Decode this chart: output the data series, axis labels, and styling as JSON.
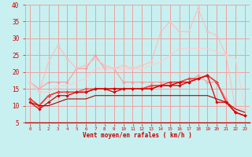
{
  "xlabel": "Vent moyen/en rafales ( km/h )",
  "bg_color": "#c8f0f0",
  "grid_color": "#f0a0a0",
  "xlim": [
    -0.5,
    23.5
  ],
  "ylim": [
    5,
    40
  ],
  "yticks": [
    5,
    10,
    15,
    20,
    25,
    30,
    35,
    40
  ],
  "xticks": [
    0,
    1,
    2,
    3,
    4,
    5,
    6,
    7,
    8,
    9,
    10,
    11,
    12,
    13,
    14,
    15,
    16,
    17,
    18,
    19,
    20,
    21,
    22,
    23
  ],
  "lines": [
    {
      "x": [
        0,
        1,
        2,
        3,
        4,
        5,
        6,
        7,
        8,
        9,
        10,
        11,
        12,
        13,
        14,
        15,
        16,
        17,
        18,
        19,
        20,
        21,
        22,
        23
      ],
      "y": [
        17,
        15,
        17,
        17,
        17,
        21,
        21,
        25,
        21,
        21,
        17,
        17,
        17,
        17,
        17,
        17,
        17,
        17,
        19,
        17,
        17,
        12,
        8,
        7
      ],
      "color": "#ff9999",
      "lw": 0.8,
      "marker": "D",
      "ms": 1.8
    },
    {
      "x": [
        0,
        1,
        2,
        3,
        4,
        5,
        6,
        7,
        8,
        9,
        10,
        11,
        12,
        13,
        14,
        15,
        16,
        17,
        18,
        19,
        20,
        21,
        22,
        23
      ],
      "y": [
        17,
        14,
        23,
        28,
        24,
        21,
        22,
        24,
        22,
        21,
        22,
        21,
        22,
        23,
        32,
        35,
        32,
        32,
        39,
        32,
        31,
        25,
        9,
        9
      ],
      "color": "#ffbbbb",
      "lw": 0.8,
      "marker": "D",
      "ms": 1.8
    },
    {
      "x": [
        0,
        1,
        2,
        3,
        4,
        5,
        6,
        7,
        8,
        9,
        10,
        11,
        12,
        13,
        14,
        15,
        16,
        17,
        18,
        19,
        20,
        21,
        22,
        23
      ],
      "y": [
        17,
        14,
        14,
        16,
        16,
        17,
        18,
        21,
        21,
        21,
        21,
        21,
        21,
        22,
        23,
        25,
        27,
        27,
        27,
        27,
        26,
        25,
        24,
        9
      ],
      "color": "#ffcccc",
      "lw": 0.8,
      "marker": null,
      "ms": 0
    },
    {
      "x": [
        0,
        1,
        2,
        3,
        4,
        5,
        6,
        7,
        8,
        9,
        10,
        11,
        12,
        13,
        14,
        15,
        16,
        17,
        18,
        19,
        20,
        21,
        22,
        23
      ],
      "y": [
        12,
        10,
        13,
        14,
        14,
        14,
        14,
        15,
        15,
        14,
        15,
        15,
        15,
        15,
        16,
        16,
        16,
        17,
        18,
        19,
        17,
        11,
        8,
        7
      ],
      "color": "#cc0000",
      "lw": 0.9,
      "marker": "D",
      "ms": 1.8
    },
    {
      "x": [
        0,
        1,
        2,
        3,
        4,
        5,
        6,
        7,
        8,
        9,
        10,
        11,
        12,
        13,
        14,
        15,
        16,
        17,
        18,
        19,
        20,
        21,
        22,
        23
      ],
      "y": [
        12,
        10,
        13,
        14,
        14,
        14,
        14,
        15,
        15,
        15,
        15,
        15,
        15,
        16,
        16,
        17,
        17,
        18,
        18,
        19,
        17,
        11,
        8,
        7
      ],
      "color": "#ee2222",
      "lw": 0.9,
      "marker": "D",
      "ms": 1.8
    },
    {
      "x": [
        0,
        1,
        2,
        3,
        4,
        5,
        6,
        7,
        8,
        9,
        10,
        11,
        12,
        13,
        14,
        15,
        16,
        17,
        18,
        19,
        20,
        21,
        22,
        23
      ],
      "y": [
        12,
        10,
        13,
        14,
        14,
        14,
        15,
        15,
        15,
        15,
        15,
        15,
        15,
        16,
        16,
        16,
        17,
        18,
        18,
        19,
        17,
        11,
        8,
        7
      ],
      "color": "#ff4444",
      "lw": 0.9,
      "marker": "D",
      "ms": 1.8
    },
    {
      "x": [
        0,
        1,
        2,
        3,
        4,
        5,
        6,
        7,
        8,
        9,
        10,
        11,
        12,
        13,
        14,
        15,
        16,
        17,
        18,
        19,
        20,
        21,
        22,
        23
      ],
      "y": [
        11,
        10,
        10,
        11,
        12,
        12,
        12,
        13,
        13,
        13,
        13,
        13,
        13,
        13,
        13,
        13,
        13,
        13,
        13,
        13,
        12,
        11,
        9,
        8
      ],
      "color": "#aa0000",
      "lw": 0.8,
      "marker": null,
      "ms": 0
    },
    {
      "x": [
        0,
        1,
        2,
        3,
        4,
        5,
        6,
        7,
        8,
        9,
        10,
        11,
        12,
        13,
        14,
        15,
        16,
        17,
        18,
        19,
        20,
        21,
        22,
        23
      ],
      "y": [
        11,
        9,
        11,
        13,
        13,
        14,
        14,
        15,
        15,
        15,
        15,
        15,
        15,
        15,
        16,
        16,
        17,
        17,
        18,
        19,
        11,
        11,
        8,
        7
      ],
      "color": "#dd0000",
      "lw": 0.9,
      "marker": "D",
      "ms": 1.8
    }
  ]
}
